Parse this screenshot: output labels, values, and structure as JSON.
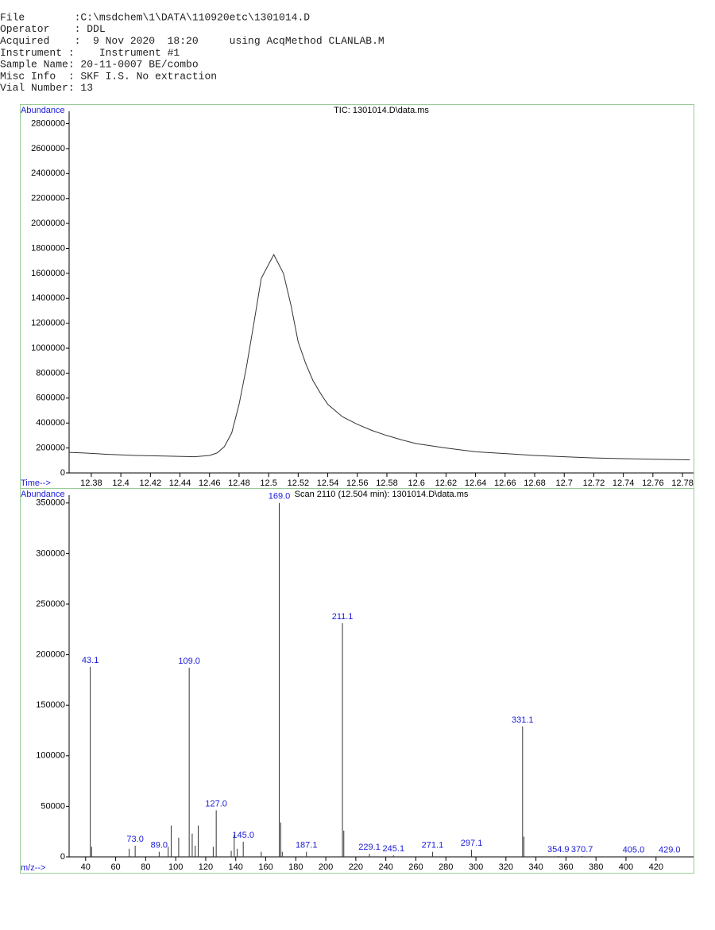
{
  "header": [
    "File        :C:\\msdchem\\1\\DATA\\110920etc\\1301014.D",
    "Operator    : DDL",
    "Acquired    :  9 Nov 2020  18:20     using AcqMethod CLANLAB.M",
    "Instrument :    Instrument #1",
    "Sample Name: 20-11-0007 BE/combo",
    "Misc Info  : SKF I.S. No extraction",
    "Vial Number: 13"
  ],
  "chart_data": [
    {
      "type": "line",
      "title": "TIC: 1301014.D\\data.ms",
      "ylabel": "Abundance",
      "xlabel": "Time-->",
      "color": "#333333",
      "x": [
        12.365,
        12.375,
        12.39,
        12.41,
        12.43,
        12.45,
        12.46,
        12.465,
        12.47,
        12.475,
        12.48,
        12.485,
        12.49,
        12.495,
        12.5035,
        12.51,
        12.515,
        12.52,
        12.525,
        12.53,
        12.535,
        12.54,
        12.55,
        12.56,
        12.57,
        12.58,
        12.59,
        12.6,
        12.62,
        12.64,
        12.66,
        12.68,
        12.7,
        12.72,
        12.74,
        12.76,
        12.785
      ],
      "values": [
        165000,
        160000,
        150000,
        140000,
        135000,
        130000,
        140000,
        160000,
        210000,
        320000,
        550000,
        850000,
        1200000,
        1560000,
        1750000,
        1600000,
        1350000,
        1050000,
        880000,
        740000,
        640000,
        550000,
        450000,
        390000,
        340000,
        300000,
        265000,
        235000,
        200000,
        170000,
        155000,
        140000,
        130000,
        120000,
        115000,
        110000,
        105000
      ],
      "xlim": [
        12.365,
        12.7875
      ],
      "ylim": [
        0,
        2950000
      ],
      "xticks": [
        12.38,
        12.4,
        12.42,
        12.44,
        12.46,
        12.48,
        12.5,
        12.52,
        12.54,
        12.56,
        12.58,
        12.6,
        12.62,
        12.64,
        12.66,
        12.68,
        12.7,
        12.72,
        12.74,
        12.76,
        12.78
      ],
      "yticks": [
        0,
        200000,
        400000,
        600000,
        800000,
        1000000,
        1200000,
        1400000,
        1600000,
        1800000,
        2000000,
        2200000,
        2400000,
        2600000,
        2800000
      ]
    },
    {
      "type": "stem",
      "title": "Scan 2110 (12.504 min): 1301014.D\\data.ms",
      "ylabel": "Abundance",
      "xlabel": "m/z-->",
      "color": "#333333",
      "label_color": "#1a1adc",
      "x": [
        43.1,
        44,
        69,
        73.0,
        89.0,
        95,
        97,
        102,
        109.0,
        111,
        113,
        115,
        125,
        127.0,
        137,
        139,
        141,
        145.0,
        157,
        169.0,
        170,
        171,
        187.1,
        211.1,
        212,
        229.1,
        245.1,
        271.1,
        297.1,
        331.1,
        332,
        354.9,
        370.7,
        405.0,
        429.0
      ],
      "values": [
        188000,
        10000,
        8000,
        11000,
        5000,
        10000,
        31000,
        19000,
        187000,
        23000,
        11000,
        31000,
        10000,
        46000,
        6000,
        22000,
        8000,
        15000,
        5000,
        350000,
        34000,
        5000,
        5000,
        231000,
        26000,
        3000,
        1500,
        5000,
        7000,
        129000,
        20000,
        800,
        800,
        500,
        500
      ],
      "x_labels": [
        "43.1",
        null,
        null,
        "73.0",
        "89.0",
        null,
        null,
        null,
        "109.0",
        null,
        null,
        null,
        null,
        "127.0",
        null,
        null,
        null,
        "145.0",
        null,
        "169.0",
        null,
        null,
        "187.1",
        "211.1",
        null,
        "229.1",
        "245.1",
        "271.1",
        "297.1",
        "331.1",
        null,
        "354.9",
        "370.7",
        "405.0",
        "429.0"
      ],
      "xlim": [
        29,
        445
      ],
      "ylim": [
        0,
        364000
      ],
      "xticks": [
        40,
        60,
        80,
        100,
        120,
        140,
        160,
        180,
        200,
        220,
        240,
        260,
        280,
        300,
        320,
        340,
        360,
        380,
        400,
        420
      ],
      "yticks": [
        0,
        50000,
        100000,
        150000,
        200000,
        250000,
        300000,
        350000
      ]
    }
  ]
}
